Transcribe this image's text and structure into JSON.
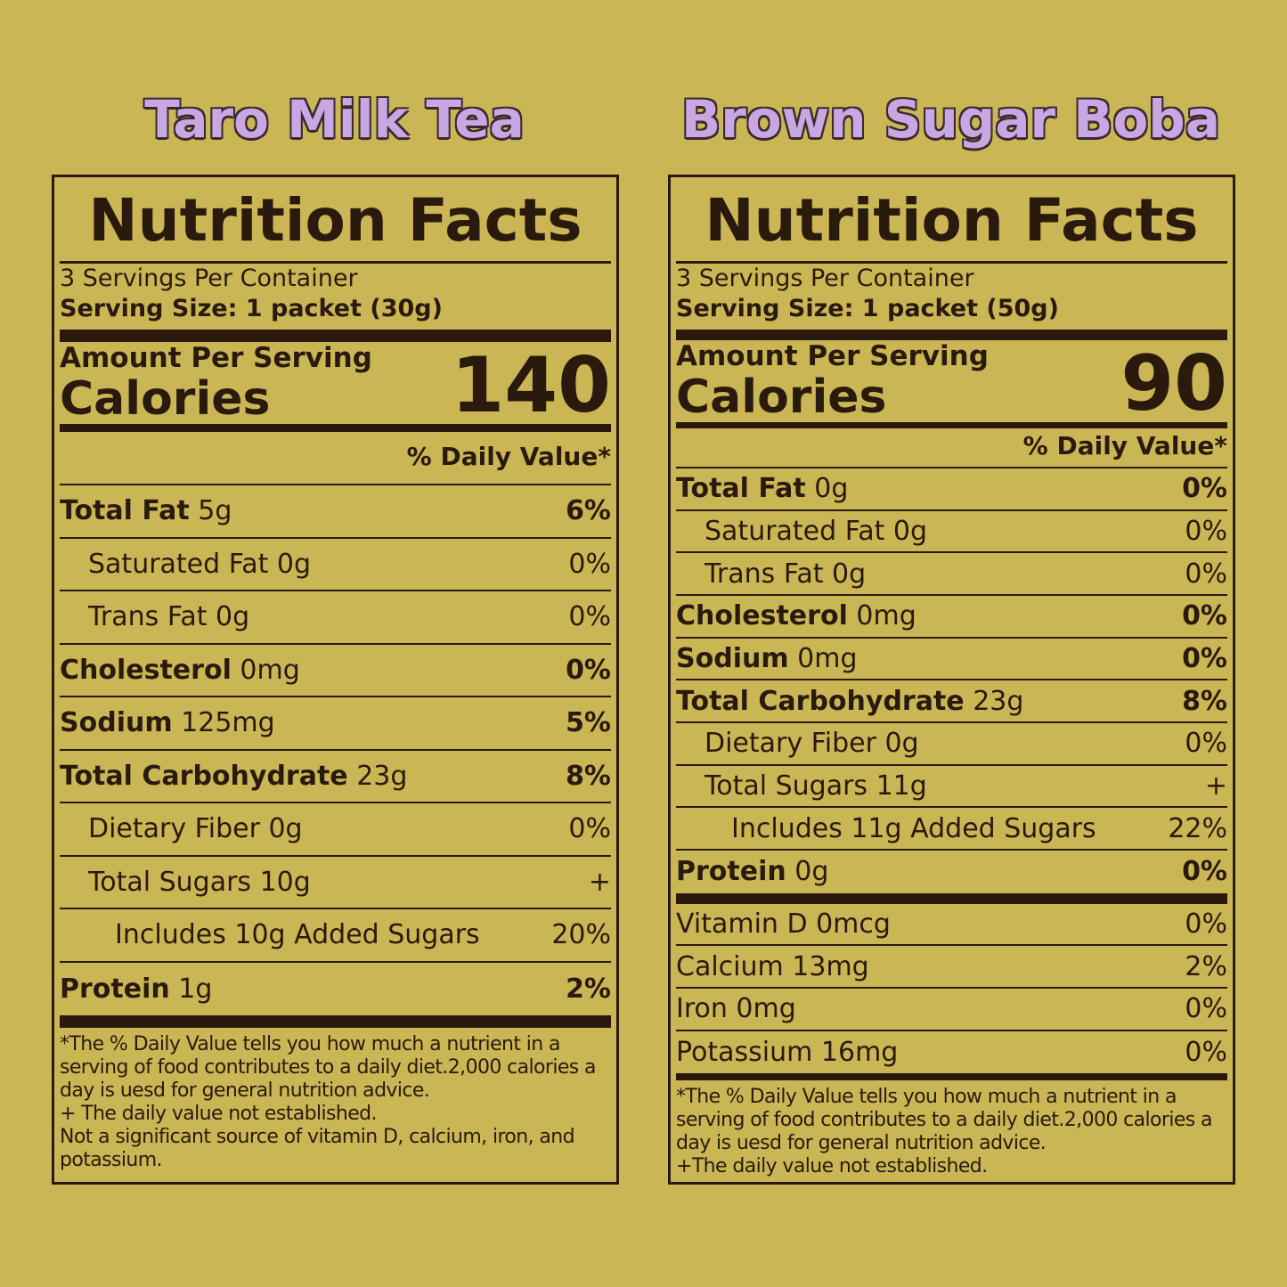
{
  "panels": [
    {
      "title": "Taro Milk Tea",
      "heading": "Nutrition Facts",
      "servings": "3 Servings Per Container",
      "serving_size": "Serving Size: 1 packet (30g)",
      "amount_per_serving": "Amount Per Serving",
      "calories_label": "Calories",
      "calories": "140",
      "daily_value_header": "% Daily Value*",
      "rows": [
        {
          "name": "Total Fat",
          "amount": "5g",
          "dv": "6%",
          "level": 0
        },
        {
          "name": "Saturated Fat",
          "amount": "0g",
          "dv": "0%",
          "level": 1
        },
        {
          "name": "Trans Fat",
          "amount": "0g",
          "dv": "0%",
          "level": 1
        },
        {
          "name": "Cholesterol",
          "amount": "0mg",
          "dv": "0%",
          "level": 0
        },
        {
          "name": "Sodium",
          "amount": "125mg",
          "dv": "5%",
          "level": 0
        },
        {
          "name": "Total Carbohydrate",
          "amount": "23g",
          "dv": "8%",
          "level": 0
        },
        {
          "name": "Dietary Fiber",
          "amount": "0g",
          "dv": "0%",
          "level": 1
        },
        {
          "name": "Total Sugars",
          "amount": "10g",
          "dv": "+",
          "level": 1
        },
        {
          "name": "Includes 10g Added Sugars",
          "dv": "20%",
          "level": 2
        },
        {
          "name": "Protein",
          "amount": "1g",
          "dv": "2%",
          "level": 0
        }
      ],
      "footnote": [
        "*The % Daily Value tells you how much a nutrient in a serving of food contributes to a daily diet.2,000 calories a day is uesd for general nutrition advice.",
        "+ The daily value not established.",
        "Not a significant source of vitamin D, calcium, iron, and potassium."
      ]
    },
    {
      "title": "Brown Sugar Boba",
      "heading": "Nutrition Facts",
      "servings": "3 Servings Per Container",
      "serving_size": "Serving Size: 1 packet (50g)",
      "amount_per_serving": "Amount Per Serving",
      "calories_label": "Calories",
      "calories": "90",
      "daily_value_header": "% Daily Value*",
      "rows": [
        {
          "name": "Total Fat",
          "amount": "0g",
          "dv": "0%",
          "level": 0
        },
        {
          "name": "Saturated Fat",
          "amount": "0g",
          "dv": "0%",
          "level": 1
        },
        {
          "name": "Trans Fat",
          "amount": "0g",
          "dv": "0%",
          "level": 1
        },
        {
          "name": "Cholesterol",
          "amount": "0mg",
          "dv": "0%",
          "level": 0
        },
        {
          "name": "Sodium",
          "amount": "0mg",
          "dv": "0%",
          "level": 0
        },
        {
          "name": "Total Carbohydrate",
          "amount": "23g",
          "dv": "8%",
          "level": 0
        },
        {
          "name": "Dietary Fiber",
          "amount": "0g",
          "dv": "0%",
          "level": 1
        },
        {
          "name": "Total Sugars",
          "amount": "11g",
          "dv": "+",
          "level": 1
        },
        {
          "name": "Includes 11g Added Sugars",
          "dv": "22%",
          "level": 2
        },
        {
          "name": "Protein",
          "amount": "0g",
          "dv": "0%",
          "level": 0
        }
      ],
      "minerals": [
        {
          "name": "Vitamin D 0mcg",
          "dv": "0%"
        },
        {
          "name": "Calcium 13mg",
          "dv": "2%"
        },
        {
          "name": "Iron 0mg",
          "dv": "0%"
        },
        {
          "name": "Potassium 16mg",
          "dv": "0%"
        }
      ],
      "footnote": [
        "*The % Daily Value tells you how much a nutrient in a serving of food contributes to a daily diet.2,000 calories a day is uesd for general nutrition advice.",
        "+The daily value not established."
      ]
    }
  ]
}
